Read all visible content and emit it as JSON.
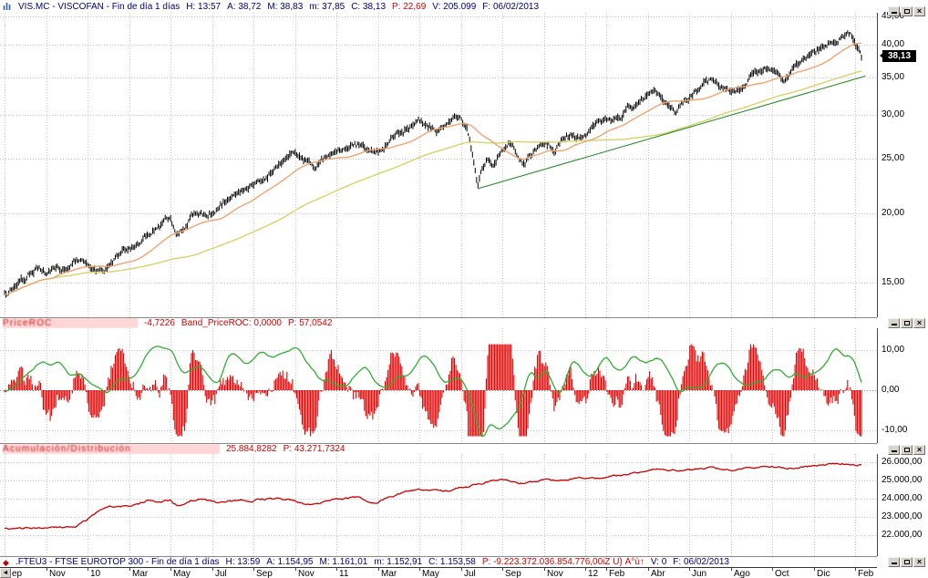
{
  "icons": {
    "close_glyph": "×",
    "scroll_left_glyph": "◄",
    "minimize": "bottom-bar",
    "restore": "box",
    "app_icon": "mini-bar-chart",
    "fteu3_icon": "red-diamond"
  },
  "p1": {
    "title": "VIS.MC - VISCOFAN - Fin de día 1 días",
    "time": "H: 13:57",
    "open": "A: 38,72",
    "high": "M: 38,83",
    "low": "m: 37,85",
    "close": "C: 38,13",
    "p": "P: 22,69",
    "volume": "V: 205.099",
    "date": "F: 06/02/2013",
    "price_tag": "38,13"
  },
  "p2": {
    "name": "PriceROC",
    "value": "-4,7226",
    "band": "Band_PriceROC: 0,0000",
    "p": "P: 57,0542"
  },
  "p3": {
    "name": "Acumulación/Distribución",
    "value": "25.884,8282",
    "p": "P: 43.271,7324"
  },
  "p4": {
    "title": ".FTEU3 - FTSE EUROTOP 300 - Fin de día 1 días",
    "time": "H: 13:59",
    "open": "A: 1.154,95",
    "high": "M: 1.161,01",
    "low": "m: 1.152,91",
    "close": "C: 1.153,58",
    "p": "P: -9.223.372.036.854.776,00iZ Ú) Á°ù↑",
    "volume": "V: 0",
    "date": "F: 06/02/2013"
  },
  "chart_data": [
    {
      "type": "candlestick",
      "symbol": "VIS.MC",
      "name": "VISCOFAN",
      "timeframe": "Fin de día 1 días",
      "current": {
        "open": 38.72,
        "high": 38.83,
        "low": 37.85,
        "close": 38.13,
        "volume": 205099,
        "date": "06/02/2013"
      },
      "y_scale": "log",
      "ylim": [
        13.0,
        45.7
      ],
      "y_ticks": [
        {
          "v": 45,
          "label": "45,00"
        },
        {
          "v": 40,
          "label": "40,00"
        },
        {
          "v": 35,
          "label": "35,00"
        },
        {
          "v": 30,
          "label": "30,00"
        },
        {
          "v": 25,
          "label": "25,00"
        },
        {
          "v": 20,
          "label": "20,00"
        },
        {
          "v": 15,
          "label": "15,00"
        }
      ],
      "x_unit": "months from Sep 2009",
      "x_ticks": [
        {
          "label": "ep",
          "m": 0
        },
        {
          "label": "Nov",
          "m": 2
        },
        {
          "label": "10",
          "m": 4
        },
        {
          "label": "Mar",
          "m": 6
        },
        {
          "label": "May",
          "m": 8
        },
        {
          "label": "Jul",
          "m": 10
        },
        {
          "label": "Sep",
          "m": 12
        },
        {
          "label": "Nov",
          "m": 14
        },
        {
          "label": "11",
          "m": 16
        },
        {
          "label": "Mar",
          "m": 18
        },
        {
          "label": "May",
          "m": 20
        },
        {
          "label": "Jul",
          "m": 22
        },
        {
          "label": "Sep",
          "m": 24
        },
        {
          "label": "Nov",
          "m": 26
        },
        {
          "label": "12",
          "m": 28
        },
        {
          "label": "Feb",
          "m": 29
        },
        {
          "label": "Abr",
          "m": 31
        },
        {
          "label": "Jun",
          "m": 33
        },
        {
          "label": "Ago",
          "m": 35
        },
        {
          "label": "Oct",
          "m": 37
        },
        {
          "label": "Dic",
          "m": 39
        },
        {
          "label": "Feb",
          "m": 41
        }
      ],
      "price_path": [
        [
          0,
          14.2
        ],
        [
          0.5,
          14.8
        ],
        [
          1,
          15.2
        ],
        [
          1.5,
          15.9
        ],
        [
          2,
          15.7
        ],
        [
          2.5,
          16.3
        ],
        [
          3,
          15.8
        ],
        [
          3.5,
          16.5
        ],
        [
          4,
          16.3
        ],
        [
          4.5,
          15.9
        ],
        [
          5,
          16.1
        ],
        [
          5.5,
          16.8
        ],
        [
          6,
          17.4
        ],
        [
          6.5,
          18.0
        ],
        [
          7,
          18.4
        ],
        [
          7.5,
          19.2
        ],
        [
          8,
          19.5
        ],
        [
          8.3,
          18.4
        ],
        [
          8.7,
          19.0
        ],
        [
          9,
          19.9
        ],
        [
          9.5,
          20.3
        ],
        [
          10,
          20.0
        ],
        [
          10.5,
          20.7
        ],
        [
          11,
          21.4
        ],
        [
          11.5,
          21.9
        ],
        [
          12,
          22.6
        ],
        [
          12.5,
          23.3
        ],
        [
          13,
          24.2
        ],
        [
          13.5,
          24.9
        ],
        [
          14,
          25.6
        ],
        [
          14.5,
          24.6
        ],
        [
          15,
          24.2
        ],
        [
          15.5,
          25.0
        ],
        [
          16,
          25.6
        ],
        [
          16.5,
          26.2
        ],
        [
          17,
          26.4
        ],
        [
          17.5,
          25.7
        ],
        [
          18,
          25.9
        ],
        [
          18.5,
          26.8
        ],
        [
          19,
          27.6
        ],
        [
          19.5,
          28.6
        ],
        [
          20,
          29.3
        ],
        [
          20.5,
          28.5
        ],
        [
          21,
          28.2
        ],
        [
          21.5,
          29.1
        ],
        [
          22,
          29.8
        ],
        [
          22.3,
          28.5
        ],
        [
          22.6,
          24.5
        ],
        [
          22.8,
          22.3
        ],
        [
          23,
          23.8
        ],
        [
          23.3,
          25.2
        ],
        [
          23.6,
          24.4
        ],
        [
          24,
          26.2
        ],
        [
          24.4,
          26.6
        ],
        [
          24.8,
          25.0
        ],
        [
          25,
          24.7
        ],
        [
          25.4,
          25.6
        ],
        [
          26,
          26.4
        ],
        [
          26.5,
          26.0
        ],
        [
          27,
          27.2
        ],
        [
          27.5,
          27.6
        ],
        [
          28,
          28.2
        ],
        [
          28.5,
          28.8
        ],
        [
          29,
          29.4
        ],
        [
          29.5,
          30.0
        ],
        [
          30,
          30.6
        ],
        [
          30.5,
          31.6
        ],
        [
          31,
          32.8
        ],
        [
          31.3,
          33.4
        ],
        [
          31.7,
          32.2
        ],
        [
          32,
          31.4
        ],
        [
          32.3,
          30.9
        ],
        [
          32.7,
          31.6
        ],
        [
          33,
          32.2
        ],
        [
          33.5,
          33.2
        ],
        [
          34,
          34.2
        ],
        [
          34.3,
          34.6
        ],
        [
          34.7,
          33.6
        ],
        [
          35,
          33.0
        ],
        [
          35.3,
          33.4
        ],
        [
          35.7,
          34.4
        ],
        [
          36,
          35.2
        ],
        [
          36.5,
          35.8
        ],
        [
          37,
          36.4
        ],
        [
          37.3,
          35.4
        ],
        [
          37.6,
          34.6
        ],
        [
          38,
          36.2
        ],
        [
          38.5,
          37.0
        ],
        [
          39,
          38.6
        ],
        [
          39.5,
          39.8
        ],
        [
          40,
          40.6
        ],
        [
          40.3,
          41.6
        ],
        [
          40.6,
          42.4
        ],
        [
          40.8,
          41.4
        ],
        [
          41,
          40.2
        ],
        [
          41.15,
          39.4
        ],
        [
          41.3,
          38.1
        ]
      ],
      "last_close": 38.13,
      "bar_color": "#000000",
      "ma_fast": {
        "window": 36,
        "color": "#f2a36e"
      },
      "ma_slow": {
        "window": 140,
        "color": "#d4d46a"
      },
      "trendline": {
        "from": [
          22.8,
          22.1
        ],
        "to": [
          41.5,
          35.2
        ],
        "color": "#1e8a1e"
      }
    },
    {
      "type": "oscillator",
      "name": "Band_PriceROC",
      "current": {
        "value": -4.7226,
        "band": 0.0,
        "p": 57.0542
      },
      "ylim": [
        -13.2,
        15.5
      ],
      "y_ticks": [
        {
          "v": 10,
          "label": "10,00"
        },
        {
          "v": 0,
          "label": "0,00"
        },
        {
          "v": -10,
          "label": "-10,00"
        }
      ],
      "line_color": "#2fae2f",
      "hist_color": "#e00000",
      "roc_window_bars": 34,
      "hist_window_bars": 11
    },
    {
      "type": "line",
      "name": "Acumulación/Distribución",
      "current": {
        "value": 25884.8282,
        "p": 43271.7324
      },
      "ylim": [
        20850,
        26450
      ],
      "y_ticks": [
        {
          "v": 26000,
          "label": "26.000,00"
        },
        {
          "v": 25000,
          "label": "25.000,00"
        },
        {
          "v": 24000,
          "label": "24.000,00"
        },
        {
          "v": 23000,
          "label": "23.000,00"
        },
        {
          "v": 22000,
          "label": "22.000,00"
        }
      ],
      "color": "#cc0000",
      "path": [
        [
          0,
          22350
        ],
        [
          1,
          22380
        ],
        [
          2,
          22420
        ],
        [
          3,
          22400
        ],
        [
          3.5,
          22500
        ],
        [
          4,
          22850
        ],
        [
          4.5,
          23300
        ],
        [
          5,
          23520
        ],
        [
          5.5,
          23580
        ],
        [
          6,
          23620
        ],
        [
          6.5,
          23800
        ],
        [
          7,
          23920
        ],
        [
          7.5,
          23840
        ],
        [
          8,
          23900
        ],
        [
          8.3,
          23640
        ],
        [
          8.7,
          23760
        ],
        [
          9,
          23900
        ],
        [
          9.5,
          23960
        ],
        [
          10,
          23820
        ],
        [
          10.5,
          23780
        ],
        [
          11,
          23860
        ],
        [
          11.5,
          23900
        ],
        [
          12,
          23940
        ],
        [
          12.5,
          23980
        ],
        [
          13,
          24000
        ],
        [
          13.5,
          23960
        ],
        [
          14,
          23900
        ],
        [
          14.5,
          23740
        ],
        [
          15,
          23700
        ],
        [
          15.5,
          23860
        ],
        [
          16,
          23960
        ],
        [
          16.5,
          24020
        ],
        [
          17,
          24060
        ],
        [
          17.5,
          23840
        ],
        [
          18,
          23800
        ],
        [
          18.5,
          24060
        ],
        [
          19,
          24280
        ],
        [
          19.5,
          24420
        ],
        [
          20,
          24540
        ],
        [
          20.5,
          24440
        ],
        [
          21,
          24380
        ],
        [
          21.5,
          24480
        ],
        [
          22,
          24600
        ],
        [
          22.5,
          24700
        ],
        [
          23,
          24840
        ],
        [
          23.5,
          24960
        ],
        [
          24,
          25040
        ],
        [
          24.5,
          24920
        ],
        [
          25,
          24860
        ],
        [
          25.5,
          24940
        ],
        [
          26,
          25020
        ],
        [
          26.5,
          24980
        ],
        [
          27,
          25060
        ],
        [
          27.5,
          25100
        ],
        [
          28,
          25120
        ],
        [
          28.5,
          25160
        ],
        [
          29,
          25220
        ],
        [
          29.5,
          25260
        ],
        [
          30,
          25320
        ],
        [
          30.5,
          25440
        ],
        [
          31,
          25580
        ],
        [
          31.5,
          25620
        ],
        [
          32,
          25540
        ],
        [
          32.5,
          25520
        ],
        [
          33,
          25580
        ],
        [
          33.5,
          25640
        ],
        [
          34,
          25700
        ],
        [
          34.5,
          25660
        ],
        [
          35,
          25620
        ],
        [
          35.5,
          25660
        ],
        [
          36,
          25700
        ],
        [
          36.5,
          25740
        ],
        [
          37,
          25780
        ],
        [
          37.5,
          25720
        ],
        [
          38,
          25700
        ],
        [
          38.5,
          25760
        ],
        [
          39,
          25820
        ],
        [
          39.5,
          25860
        ],
        [
          40,
          25920
        ],
        [
          40.5,
          25940
        ],
        [
          41,
          25900
        ],
        [
          41.3,
          25885
        ]
      ]
    }
  ]
}
